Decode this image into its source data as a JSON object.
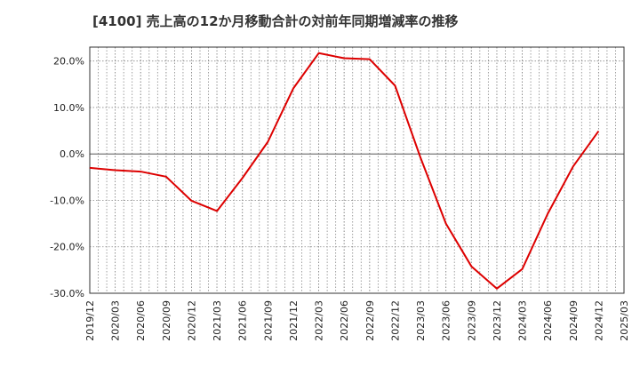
{
  "chart_data": {
    "type": "line",
    "title": "[4100]  売上高の12か月移動合計の対前年同期増減率の推移",
    "xlabel": "",
    "ylabel": "",
    "ylim": [
      -30,
      23
    ],
    "grid": true,
    "y_ticks": [
      {
        "value": 20,
        "label": "20.0%"
      },
      {
        "value": 10,
        "label": "10.0%"
      },
      {
        "value": 0,
        "label": "0.0%"
      },
      {
        "value": -10,
        "label": "-10.0%"
      },
      {
        "value": -20,
        "label": "-20.0%"
      },
      {
        "value": -30,
        "label": "-30.0%"
      }
    ],
    "x_ticks": [
      "2019/12",
      "2020/03",
      "2020/06",
      "2020/09",
      "2020/12",
      "2021/03",
      "2021/06",
      "2021/09",
      "2021/12",
      "2022/03",
      "2022/06",
      "2022/09",
      "2022/12",
      "2023/03",
      "2023/06",
      "2023/09",
      "2023/12",
      "2024/03",
      "2024/06",
      "2024/09",
      "2024/12",
      "2025/03"
    ],
    "series": [
      {
        "name": "増減率",
        "color": "#dd0000",
        "x": [
          "2019/12",
          "2020/03",
          "2020/06",
          "2020/09",
          "2020/12",
          "2021/03",
          "2021/06",
          "2021/09",
          "2021/12",
          "2022/03",
          "2022/06",
          "2022/09",
          "2022/12",
          "2023/03",
          "2023/06",
          "2023/09",
          "2023/12",
          "2024/03",
          "2024/06",
          "2024/09",
          "2024/12"
        ],
        "values": [
          -3.0,
          -3.5,
          -3.8,
          -4.9,
          -10.1,
          -12.3,
          -5.2,
          2.6,
          14.1,
          21.7,
          20.6,
          20.4,
          14.7,
          -0.8,
          -15.0,
          -24.2,
          -29.0,
          -24.8,
          -12.9,
          -2.7,
          4.9
        ]
      }
    ]
  }
}
